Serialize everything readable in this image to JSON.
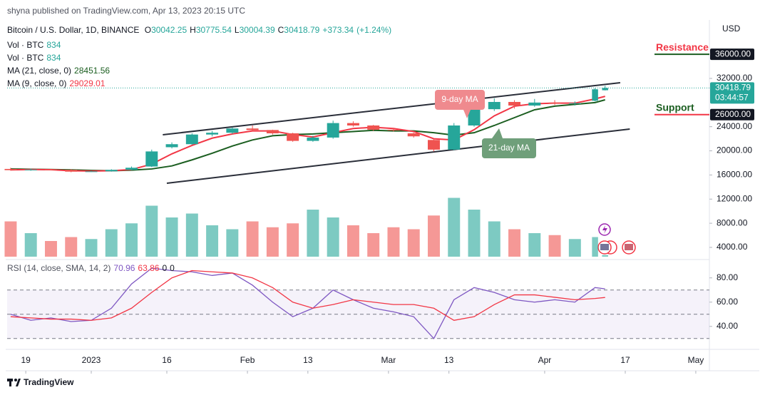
{
  "header": {
    "publisher": "shyna published on TradingView.com, Apr 13, 2023 20:15 UTC",
    "symbol": "Bitcoin / U.S. Dollar, 1D, BINANCE",
    "currency": "USD",
    "countdown": "03:44:57",
    "brand": "TradingView"
  },
  "chart_data": [
    {
      "type": "candlestick",
      "x": [
        -16,
        -12,
        -8,
        -4,
        0,
        4,
        8,
        12,
        16,
        20,
        24,
        28,
        32,
        36,
        40,
        44,
        48,
        52,
        56,
        60,
        64,
        68,
        72,
        76,
        80,
        84,
        88,
        92,
        96,
        100,
        102
      ],
      "xlim": [
        -16.7,
        122.7
      ],
      "xticks": [
        {
          "value": -13,
          "label": "19"
        },
        {
          "value": 0,
          "label": "2023"
        },
        {
          "value": 15,
          "label": "16"
        },
        {
          "value": 31,
          "label": "Feb"
        },
        {
          "value": 43,
          "label": "13"
        },
        {
          "value": 59,
          "label": "Mar"
        },
        {
          "value": 71,
          "label": "13"
        },
        {
          "value": 90,
          "label": "Apr"
        },
        {
          "value": 106,
          "label": "17"
        },
        {
          "value": 120,
          "label": "May"
        }
      ],
      "ylim": [
        2460,
        41450
      ],
      "yticks": [
        {
          "value": 4000,
          "label": "4000.00"
        },
        {
          "value": 8000,
          "label": "8000.00"
        },
        {
          "value": 12000,
          "label": "12000.00"
        },
        {
          "value": 16000,
          "label": "16000.00"
        },
        {
          "value": 20000,
          "label": "20000.00"
        },
        {
          "value": 24000,
          "label": "24000.00"
        },
        {
          "value": 32000,
          "label": "32000.00"
        }
      ],
      "ohlc_prefixes": [
        "O",
        "H",
        "L",
        "C"
      ],
      "change": {
        "value": 373.34,
        "label": "+373.34"
      },
      "change_percent": {
        "value": 1.24,
        "label": "(+1.24%)"
      },
      "up_color": "#26a69a",
      "down_color": "#ef5350",
      "open": [
        17000,
        16800,
        16900,
        16850,
        16550,
        16600,
        16850,
        17400,
        20600,
        21100,
        22700,
        23000,
        23700,
        23450,
        22900,
        21650,
        22200,
        24600,
        24200,
        23500,
        22900,
        21800,
        20200,
        24200,
        26900,
        28100,
        27500,
        28000,
        27800,
        28300,
        30042.25
      ],
      "high": [
        17200,
        17050,
        17000,
        16950,
        16700,
        16950,
        17400,
        20200,
        21400,
        22900,
        23300,
        23900,
        24200,
        23500,
        23000,
        22500,
        25000,
        24900,
        24300,
        23800,
        23000,
        22000,
        24600,
        27500,
        28700,
        28400,
        28600,
        28400,
        28200,
        30400,
        30775.54
      ],
      "low": [
        16700,
        16700,
        16750,
        16450,
        16500,
        16550,
        16800,
        17300,
        20400,
        21000,
        22400,
        22800,
        23300,
        22700,
        21500,
        21500,
        22000,
        24000,
        23300,
        23200,
        22200,
        19900,
        20100,
        24000,
        26600,
        27000,
        27300,
        27600,
        27500,
        28200,
        30004.39
      ],
      "close": [
        16800,
        16900,
        16850,
        16550,
        16600,
        16850,
        17200,
        19900,
        21100,
        22700,
        23000,
        23700,
        23450,
        22900,
        21650,
        22200,
        24600,
        24200,
        23500,
        23450,
        22400,
        20200,
        24200,
        26900,
        28100,
        27500,
        28000,
        27800,
        27900,
        30200,
        30418.79
      ],
      "volume": {
        "name": "Vol · BTC",
        "y2lim": [
          0,
          120000
        ],
        "values": [
          18000,
          12000,
          8000,
          10000,
          9000,
          14000,
          17000,
          26000,
          20000,
          22000,
          16000,
          14000,
          18000,
          15000,
          17000,
          24000,
          20000,
          16000,
          12000,
          15000,
          14000,
          21000,
          30000,
          24000,
          18000,
          14000,
          12000,
          11000,
          9000,
          10000,
          834
        ]
      },
      "series": [
        {
          "name": "MA (21, close, 0)",
          "color": "#1b5e20",
          "values": [
            17000,
            16950,
            16900,
            16850,
            16750,
            16700,
            16800,
            17000,
            17500,
            18500,
            19600,
            20800,
            21800,
            22500,
            22700,
            22800,
            23000,
            23200,
            23400,
            23300,
            23300,
            23000,
            22600,
            23000,
            24200,
            25500,
            26800,
            27400,
            27700,
            28000,
            28451.56
          ]
        },
        {
          "name": "MA (9, close, 0)",
          "color": "#f23645",
          "values": [
            16850,
            16900,
            16880,
            16700,
            16650,
            16700,
            16900,
            17800,
            19500,
            20900,
            22100,
            22800,
            23300,
            23300,
            22700,
            22300,
            23000,
            23700,
            23900,
            23700,
            23200,
            22000,
            21800,
            23500,
            25800,
            27400,
            27800,
            27900,
            27900,
            28600,
            29029.01
          ]
        }
      ],
      "levels": [
        {
          "name": "Resistance",
          "value": 36000,
          "label": "36000.00",
          "text_color": "#f23645",
          "line_color": "#1b5e20"
        },
        {
          "name": "Support",
          "value": 26000,
          "label": "26000.00",
          "text_color": "#1b5e20",
          "line_color": "#f23645"
        }
      ],
      "trendlines": [
        {
          "x": [
            14.2,
            105
          ],
          "y": [
            22666,
            31291
          ]
        },
        {
          "x": [
            15,
            106.9
          ],
          "y": [
            14632,
            23612
          ]
        }
      ],
      "annotations": [
        {
          "text": "9-day MA",
          "color": "#ef8a8e"
        },
        {
          "text": "21-day MA",
          "color": "#6f9f7a"
        }
      ]
    },
    {
      "type": "line",
      "title": "RSI (14, close, SMA, 14, 2)",
      "ylim": [
        24,
        91.6
      ],
      "yticks": [
        {
          "value": 40,
          "label": "40.00"
        },
        {
          "value": 60,
          "label": "60.00"
        },
        {
          "value": 80,
          "label": "80.00"
        }
      ],
      "levels": [
        30,
        50,
        70
      ],
      "extra_values": [
        0,
        0
      ],
      "series": [
        {
          "color": "#7e57c2",
          "values": [
            50,
            45,
            47,
            44,
            45,
            55,
            75,
            88,
            86,
            85,
            82,
            84,
            74,
            60,
            48,
            55,
            70,
            62,
            55,
            52,
            48,
            30,
            62,
            72,
            68,
            62,
            60,
            62,
            60,
            72,
            70.96
          ]
        },
        {
          "color": "#f23645",
          "values": [
            48,
            47,
            46,
            46,
            45,
            47,
            55,
            68,
            80,
            86,
            85,
            84,
            80,
            72,
            60,
            55,
            58,
            62,
            60,
            58,
            58,
            55,
            45,
            48,
            58,
            66,
            66,
            64,
            62,
            63,
            63.86
          ]
        }
      ]
    }
  ]
}
